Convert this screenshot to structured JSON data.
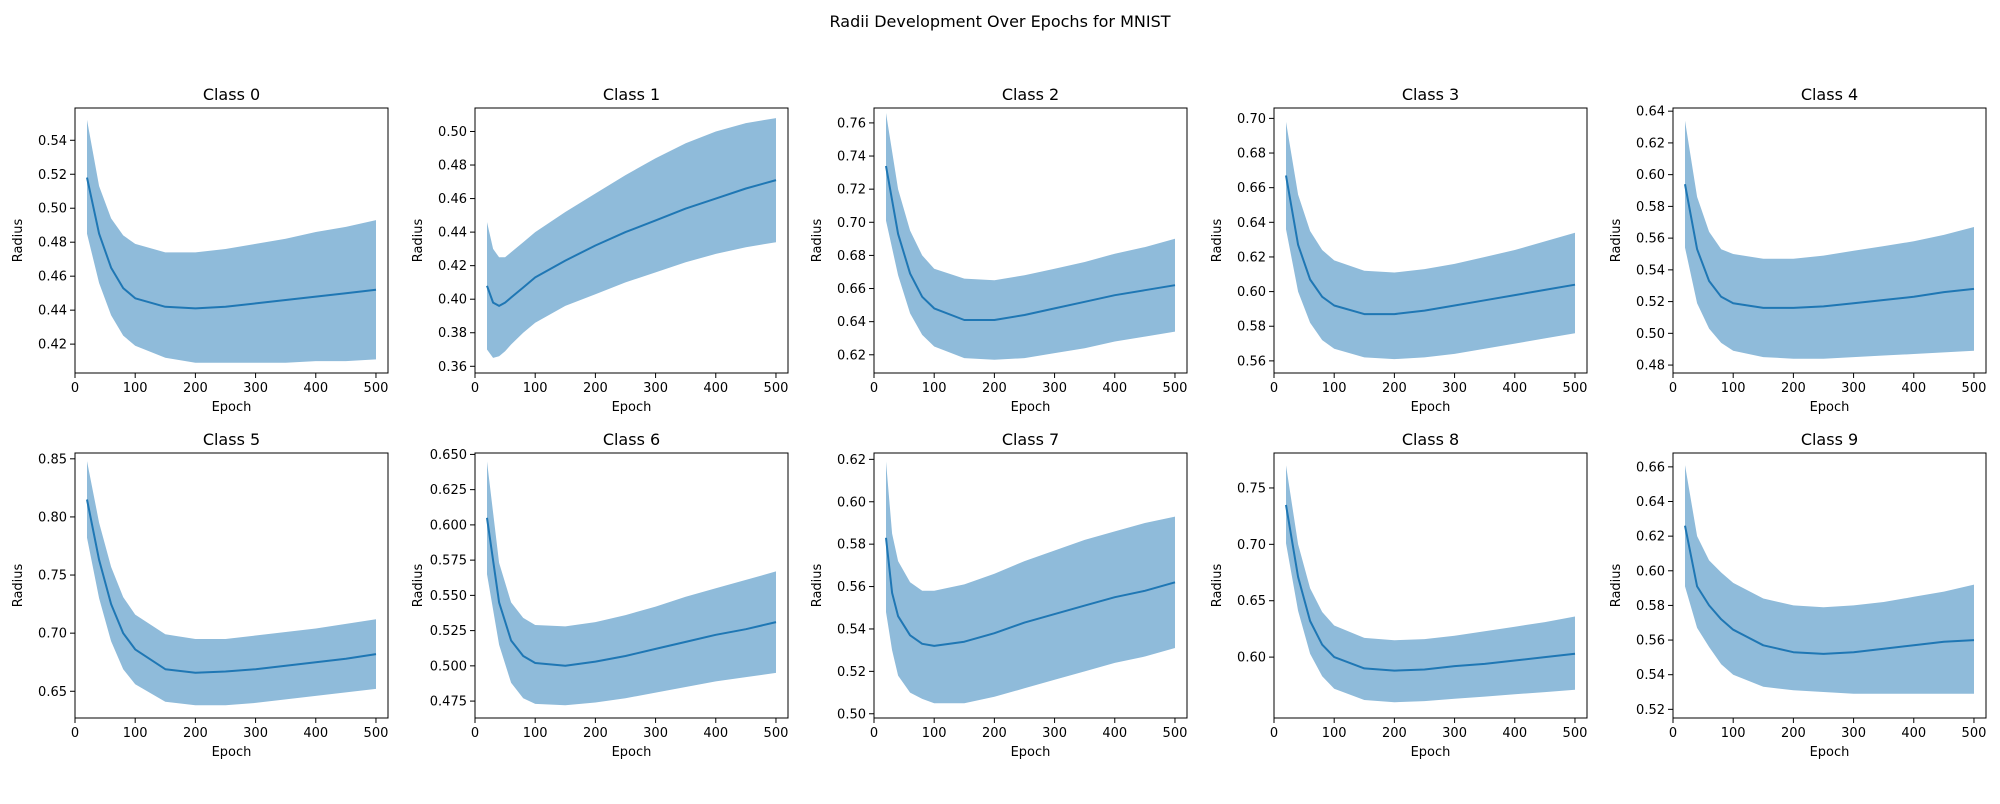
{
  "title": "Radii Development Over Epochs for MNIST",
  "colors": {
    "line": "#1f77b4",
    "band": "#8fbbda"
  },
  "chart_data": [
    {
      "type": "area",
      "title": "Class 0",
      "xlabel": "Epoch",
      "ylabel": "Radius",
      "xlim": [
        0,
        520
      ],
      "xticks": [
        0,
        100,
        200,
        300,
        400,
        500
      ],
      "ylim": [
        0.403,
        0.559
      ],
      "yticks": [
        0.42,
        0.44,
        0.46,
        0.48,
        0.5,
        0.52,
        0.54
      ],
      "ydecimals": 2,
      "x": [
        20,
        40,
        60,
        80,
        100,
        150,
        200,
        250,
        300,
        350,
        400,
        450,
        500
      ],
      "mean": [
        0.518,
        0.485,
        0.465,
        0.453,
        0.447,
        0.442,
        0.441,
        0.442,
        0.444,
        0.446,
        0.448,
        0.45,
        0.452
      ],
      "upper": [
        0.552,
        0.513,
        0.494,
        0.484,
        0.479,
        0.474,
        0.474,
        0.476,
        0.479,
        0.482,
        0.486,
        0.489,
        0.493
      ],
      "lower": [
        0.485,
        0.456,
        0.437,
        0.425,
        0.419,
        0.412,
        0.409,
        0.409,
        0.409,
        0.409,
        0.41,
        0.41,
        0.411
      ]
    },
    {
      "type": "area",
      "title": "Class 1",
      "xlabel": "Epoch",
      "ylabel": "Radius",
      "xlim": [
        0,
        520
      ],
      "xticks": [
        0,
        100,
        200,
        300,
        400,
        500
      ],
      "ylim": [
        0.356,
        0.514
      ],
      "yticks": [
        0.36,
        0.38,
        0.4,
        0.42,
        0.44,
        0.46,
        0.48,
        0.5
      ],
      "ydecimals": 2,
      "x": [
        20,
        30,
        40,
        50,
        60,
        80,
        100,
        150,
        200,
        250,
        300,
        350,
        400,
        450,
        500
      ],
      "mean": [
        0.408,
        0.398,
        0.396,
        0.398,
        0.401,
        0.407,
        0.413,
        0.423,
        0.432,
        0.44,
        0.447,
        0.454,
        0.46,
        0.466,
        0.471
      ],
      "upper": [
        0.446,
        0.43,
        0.425,
        0.425,
        0.428,
        0.434,
        0.44,
        0.452,
        0.463,
        0.474,
        0.484,
        0.493,
        0.5,
        0.505,
        0.508
      ],
      "lower": [
        0.37,
        0.365,
        0.366,
        0.369,
        0.373,
        0.38,
        0.386,
        0.396,
        0.403,
        0.41,
        0.416,
        0.422,
        0.427,
        0.431,
        0.434
      ]
    },
    {
      "type": "area",
      "title": "Class 2",
      "xlabel": "Epoch",
      "ylabel": "Radius",
      "xlim": [
        0,
        520
      ],
      "xticks": [
        0,
        100,
        200,
        300,
        400,
        500
      ],
      "ylim": [
        0.609,
        0.769
      ],
      "yticks": [
        0.62,
        0.64,
        0.66,
        0.68,
        0.7,
        0.72,
        0.74,
        0.76
      ],
      "ydecimals": 2,
      "x": [
        20,
        40,
        60,
        80,
        100,
        150,
        200,
        250,
        300,
        350,
        400,
        450,
        500
      ],
      "mean": [
        0.734,
        0.693,
        0.669,
        0.655,
        0.648,
        0.641,
        0.641,
        0.644,
        0.648,
        0.652,
        0.656,
        0.659,
        0.662
      ],
      "upper": [
        0.766,
        0.72,
        0.695,
        0.68,
        0.672,
        0.666,
        0.665,
        0.668,
        0.672,
        0.676,
        0.681,
        0.685,
        0.69
      ],
      "lower": [
        0.701,
        0.668,
        0.645,
        0.632,
        0.625,
        0.618,
        0.617,
        0.618,
        0.621,
        0.624,
        0.628,
        0.631,
        0.634
      ]
    },
    {
      "type": "area",
      "title": "Class 3",
      "xlabel": "Epoch",
      "ylabel": "Radius",
      "xlim": [
        0,
        520
      ],
      "xticks": [
        0,
        100,
        200,
        300,
        400,
        500
      ],
      "ylim": [
        0.553,
        0.706
      ],
      "yticks": [
        0.56,
        0.58,
        0.6,
        0.62,
        0.64,
        0.66,
        0.68,
        0.7
      ],
      "ydecimals": 2,
      "x": [
        20,
        40,
        60,
        80,
        100,
        150,
        200,
        250,
        300,
        350,
        400,
        450,
        500
      ],
      "mean": [
        0.667,
        0.627,
        0.607,
        0.597,
        0.592,
        0.587,
        0.587,
        0.589,
        0.592,
        0.595,
        0.598,
        0.601,
        0.604
      ],
      "upper": [
        0.698,
        0.656,
        0.635,
        0.624,
        0.618,
        0.612,
        0.611,
        0.613,
        0.616,
        0.62,
        0.624,
        0.629,
        0.634
      ],
      "lower": [
        0.636,
        0.6,
        0.582,
        0.572,
        0.567,
        0.562,
        0.561,
        0.562,
        0.564,
        0.567,
        0.57,
        0.573,
        0.576
      ]
    },
    {
      "type": "area",
      "title": "Class 4",
      "xlabel": "Epoch",
      "ylabel": "Radius",
      "xlim": [
        0,
        520
      ],
      "xticks": [
        0,
        100,
        200,
        300,
        400,
        500
      ],
      "ylim": [
        0.475,
        0.642
      ],
      "yticks": [
        0.48,
        0.5,
        0.52,
        0.54,
        0.56,
        0.58,
        0.6,
        0.62,
        0.64
      ],
      "ydecimals": 2,
      "x": [
        20,
        40,
        60,
        80,
        100,
        150,
        200,
        250,
        300,
        350,
        400,
        450,
        500
      ],
      "mean": [
        0.594,
        0.553,
        0.533,
        0.523,
        0.519,
        0.516,
        0.516,
        0.517,
        0.519,
        0.521,
        0.523,
        0.526,
        0.528
      ],
      "upper": [
        0.634,
        0.586,
        0.564,
        0.553,
        0.55,
        0.547,
        0.547,
        0.549,
        0.552,
        0.555,
        0.558,
        0.562,
        0.567
      ],
      "lower": [
        0.554,
        0.519,
        0.503,
        0.494,
        0.489,
        0.485,
        0.484,
        0.484,
        0.485,
        0.486,
        0.487,
        0.488,
        0.489
      ]
    },
    {
      "type": "area",
      "title": "Class 5",
      "xlabel": "Epoch",
      "ylabel": "Radius",
      "xlim": [
        0,
        520
      ],
      "xticks": [
        0,
        100,
        200,
        300,
        400,
        500
      ],
      "ylim": [
        0.627,
        0.855
      ],
      "yticks": [
        0.65,
        0.7,
        0.75,
        0.8,
        0.85
      ],
      "ydecimals": 2,
      "x": [
        20,
        40,
        60,
        80,
        100,
        150,
        200,
        250,
        300,
        350,
        400,
        450,
        500
      ],
      "mean": [
        0.815,
        0.763,
        0.725,
        0.7,
        0.686,
        0.669,
        0.666,
        0.667,
        0.669,
        0.672,
        0.675,
        0.678,
        0.682
      ],
      "upper": [
        0.848,
        0.795,
        0.757,
        0.731,
        0.716,
        0.699,
        0.695,
        0.695,
        0.698,
        0.701,
        0.704,
        0.708,
        0.712
      ],
      "lower": [
        0.782,
        0.73,
        0.693,
        0.669,
        0.656,
        0.641,
        0.638,
        0.638,
        0.64,
        0.643,
        0.646,
        0.649,
        0.652
      ]
    },
    {
      "type": "area",
      "title": "Class 6",
      "xlabel": "Epoch",
      "ylabel": "Radius",
      "xlim": [
        0,
        520
      ],
      "xticks": [
        0,
        100,
        200,
        300,
        400,
        500
      ],
      "ylim": [
        0.463,
        0.651
      ],
      "yticks": [
        0.475,
        0.5,
        0.525,
        0.55,
        0.575,
        0.6,
        0.625,
        0.65
      ],
      "ydecimals": 3,
      "x": [
        20,
        40,
        60,
        80,
        100,
        150,
        200,
        250,
        300,
        350,
        400,
        450,
        500
      ],
      "mean": [
        0.605,
        0.545,
        0.518,
        0.507,
        0.502,
        0.5,
        0.503,
        0.507,
        0.512,
        0.517,
        0.522,
        0.526,
        0.531
      ],
      "upper": [
        0.645,
        0.573,
        0.545,
        0.534,
        0.529,
        0.528,
        0.531,
        0.536,
        0.542,
        0.549,
        0.555,
        0.561,
        0.567
      ],
      "lower": [
        0.565,
        0.515,
        0.488,
        0.477,
        0.473,
        0.472,
        0.474,
        0.477,
        0.481,
        0.485,
        0.489,
        0.492,
        0.495
      ]
    },
    {
      "type": "area",
      "title": "Class 7",
      "xlabel": "Epoch",
      "ylabel": "Radius",
      "xlim": [
        0,
        520
      ],
      "xticks": [
        0,
        100,
        200,
        300,
        400,
        500
      ],
      "ylim": [
        0.498,
        0.623
      ],
      "yticks": [
        0.5,
        0.52,
        0.54,
        0.56,
        0.58,
        0.6,
        0.62
      ],
      "ydecimals": 2,
      "x": [
        20,
        30,
        40,
        60,
        80,
        100,
        150,
        200,
        250,
        300,
        350,
        400,
        450,
        500
      ],
      "mean": [
        0.583,
        0.557,
        0.546,
        0.537,
        0.533,
        0.532,
        0.534,
        0.538,
        0.543,
        0.547,
        0.551,
        0.555,
        0.558,
        0.562
      ],
      "upper": [
        0.619,
        0.585,
        0.572,
        0.562,
        0.558,
        0.558,
        0.561,
        0.566,
        0.572,
        0.577,
        0.582,
        0.586,
        0.59,
        0.593
      ],
      "lower": [
        0.548,
        0.53,
        0.518,
        0.51,
        0.507,
        0.505,
        0.505,
        0.508,
        0.512,
        0.516,
        0.52,
        0.524,
        0.527,
        0.531
      ]
    },
    {
      "type": "area",
      "title": "Class 8",
      "xlabel": "Epoch",
      "ylabel": "Radius",
      "xlim": [
        0,
        520
      ],
      "xticks": [
        0,
        100,
        200,
        300,
        400,
        500
      ],
      "ylim": [
        0.546,
        0.781
      ],
      "yticks": [
        0.6,
        0.65,
        0.7,
        0.75
      ],
      "ydecimals": 2,
      "x": [
        20,
        40,
        60,
        80,
        100,
        150,
        200,
        250,
        300,
        350,
        400,
        450,
        500
      ],
      "mean": [
        0.735,
        0.671,
        0.632,
        0.611,
        0.6,
        0.59,
        0.588,
        0.589,
        0.592,
        0.594,
        0.597,
        0.6,
        0.603
      ],
      "upper": [
        0.77,
        0.7,
        0.661,
        0.64,
        0.628,
        0.617,
        0.615,
        0.616,
        0.619,
        0.623,
        0.627,
        0.631,
        0.636
      ],
      "lower": [
        0.701,
        0.641,
        0.603,
        0.583,
        0.572,
        0.562,
        0.56,
        0.561,
        0.563,
        0.565,
        0.567,
        0.569,
        0.571
      ]
    },
    {
      "type": "area",
      "title": "Class 9",
      "xlabel": "Epoch",
      "ylabel": "Radius",
      "xlim": [
        0,
        520
      ],
      "xticks": [
        0,
        100,
        200,
        300,
        400,
        500
      ],
      "ylim": [
        0.515,
        0.668
      ],
      "yticks": [
        0.52,
        0.54,
        0.56,
        0.58,
        0.6,
        0.62,
        0.64,
        0.66
      ],
      "ydecimals": 2,
      "x": [
        20,
        40,
        60,
        80,
        100,
        150,
        200,
        250,
        300,
        350,
        400,
        450,
        500
      ],
      "mean": [
        0.626,
        0.591,
        0.58,
        0.572,
        0.566,
        0.557,
        0.553,
        0.552,
        0.553,
        0.555,
        0.557,
        0.559,
        0.56
      ],
      "upper": [
        0.661,
        0.62,
        0.606,
        0.599,
        0.593,
        0.584,
        0.58,
        0.579,
        0.58,
        0.582,
        0.585,
        0.588,
        0.592
      ],
      "lower": [
        0.591,
        0.567,
        0.556,
        0.546,
        0.54,
        0.533,
        0.531,
        0.53,
        0.529,
        0.529,
        0.529,
        0.529,
        0.529
      ]
    }
  ]
}
